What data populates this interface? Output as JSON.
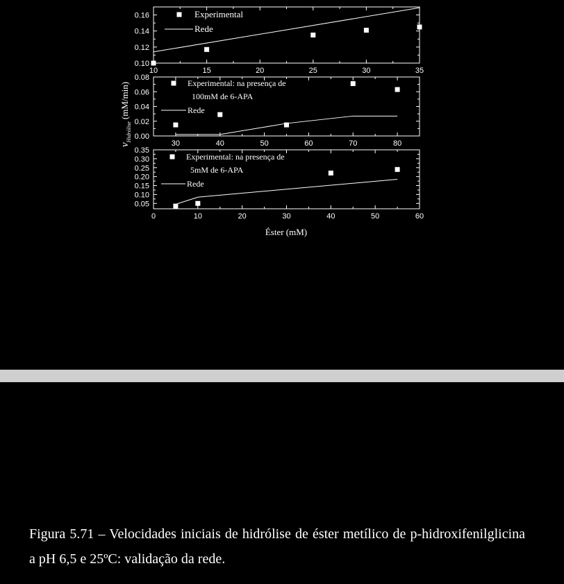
{
  "figure": {
    "caption": "Figura 5.71 – Velocidades iniciais de hidrólise de éster metílico de p-hidroxifenilglicina a pH 6,5 e 25ºC: validação da rede."
  },
  "axes": {
    "ylabel_main": "v",
    "ylabel_sub": "Hidrólise",
    "ylabel_unit": "(mM/min)",
    "xlabel": "Éster (mM)"
  },
  "colors": {
    "background": "#000000",
    "foreground": "#ffffff",
    "divider": "#cfcfcf"
  },
  "chart_data": [
    {
      "type": "scatter",
      "xlim": [
        10,
        35
      ],
      "ylim": [
        0.1,
        0.17
      ],
      "xticks": [
        "10",
        "15",
        "20",
        "25",
        "30",
        "35"
      ],
      "yticks": [
        "0.10",
        "0.12",
        "0.14",
        "0.16"
      ],
      "legend_placement": "top-left",
      "series": [
        {
          "name": "Experimental",
          "kind": "points",
          "x": [
            10,
            15,
            25,
            30,
            35
          ],
          "y": [
            0.1,
            0.117,
            0.135,
            0.141,
            0.145
          ]
        },
        {
          "name": "Rede",
          "kind": "line",
          "x": [
            10,
            35
          ],
          "y": [
            0.114,
            0.169
          ]
        }
      ]
    },
    {
      "type": "scatter",
      "xlim": [
        25,
        85
      ],
      "ylim": [
        0.0,
        0.08
      ],
      "xticks": [
        "30",
        "40",
        "50",
        "60",
        "70",
        "80"
      ],
      "yticks": [
        "0.00",
        "0.02",
        "0.04",
        "0.06",
        "0.08"
      ],
      "legend_placement": "top-left",
      "series": [
        {
          "name": "Experimental: na presença de 100mM de 6-APA",
          "name_lines": [
            "Experimental: na presença de",
            "100mM de 6-APA"
          ],
          "kind": "points",
          "x": [
            30,
            40,
            55,
            70,
            80
          ],
          "y": [
            0.015,
            0.029,
            0.015,
            0.071,
            0.063
          ]
        },
        {
          "name": "Rede",
          "kind": "line",
          "x": [
            30,
            40,
            55,
            70,
            80
          ],
          "y": [
            0.002,
            0.002,
            0.017,
            0.027,
            0.027
          ]
        }
      ]
    },
    {
      "type": "scatter",
      "xlim": [
        0,
        60
      ],
      "ylim": [
        0.02,
        0.35
      ],
      "xticks": [
        "0",
        "10",
        "20",
        "30",
        "40",
        "50",
        "60"
      ],
      "yticks": [
        "0.05",
        "0.10",
        "0.15",
        "0.20",
        "0.25",
        "0.30",
        "0.35"
      ],
      "legend_placement": "top-left",
      "series": [
        {
          "name": "Experimental: na presença de 5mM de 6-APA",
          "name_lines": [
            "Experimental: na presença de",
            "5mM de 6-APA"
          ],
          "kind": "points",
          "x": [
            5,
            10,
            40,
            55
          ],
          "y": [
            0.035,
            0.05,
            0.22,
            0.24
          ]
        },
        {
          "name": "Rede",
          "kind": "line",
          "x": [
            5,
            10,
            55
          ],
          "y": [
            0.045,
            0.085,
            0.185
          ]
        }
      ]
    }
  ]
}
